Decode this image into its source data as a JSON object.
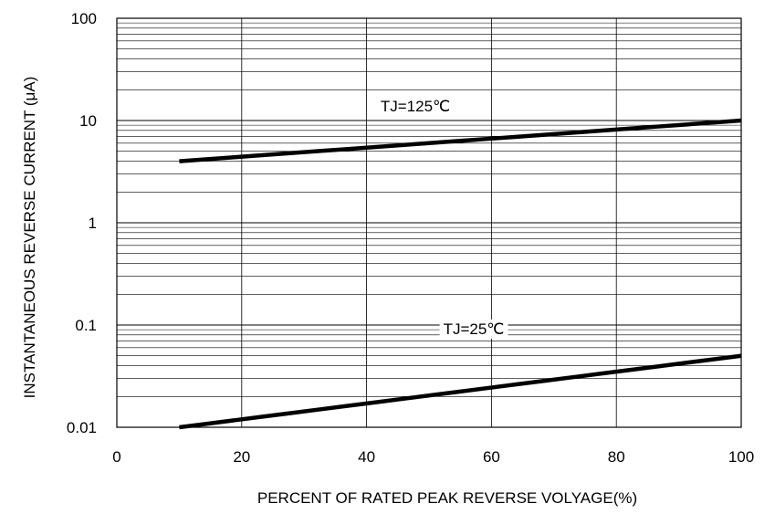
{
  "chart_data": {
    "type": "line",
    "xlabel": "PERCENT OF RATED PEAK REVERSE VOLYAGE(%)",
    "ylabel": "INSTANTANEOUS REVERSE CURRENT (μA)",
    "xlim": [
      0,
      100
    ],
    "ylim": [
      0.01,
      100
    ],
    "yscale": "log",
    "x_ticks": [
      "0",
      "20",
      "40",
      "60",
      "80",
      "100"
    ],
    "y_ticks": [
      "100",
      "10",
      "1",
      "0.1",
      "0.01"
    ],
    "grid": true,
    "series": [
      {
        "name": "TJ=125℃",
        "x": [
          10,
          100
        ],
        "y": [
          4,
          10
        ]
      },
      {
        "name": "TJ=25℃",
        "x": [
          10,
          100
        ],
        "y": [
          0.01,
          0.05
        ]
      }
    ],
    "line_color": "#000000",
    "grid_color": "#000000"
  }
}
